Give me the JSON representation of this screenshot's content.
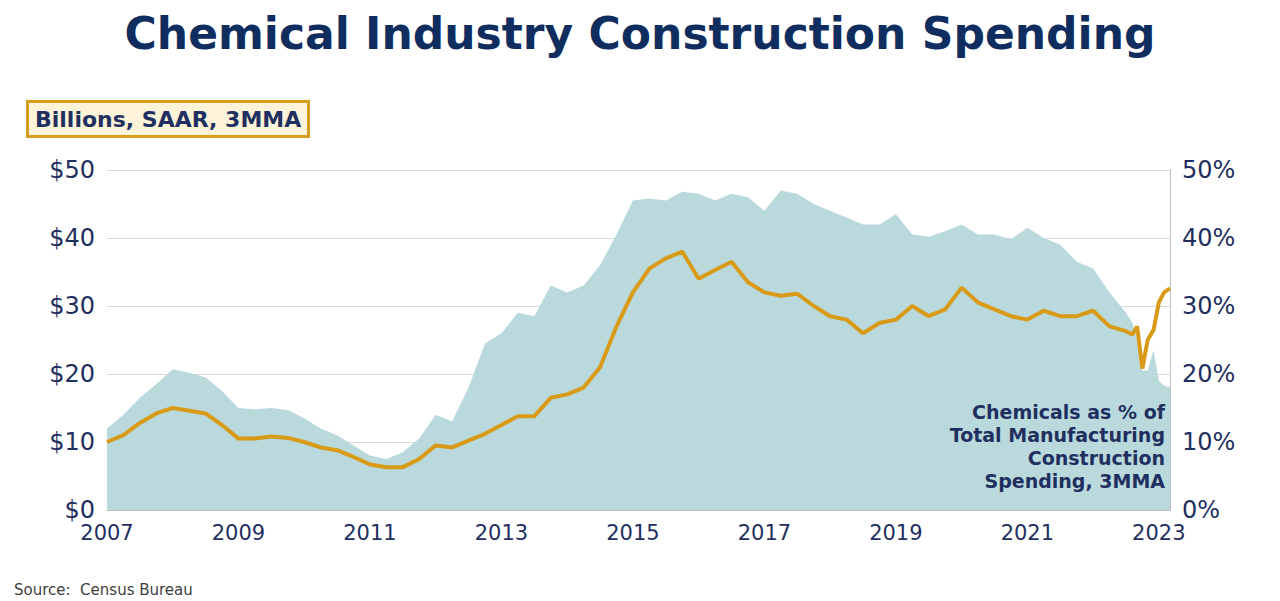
{
  "chart_data": {
    "type": "line",
    "title": "Chemical Industry Construction Spending",
    "subtitle": "Billions, SAAR, 3MMA",
    "source": "Source:  Census Bureau",
    "x": [
      2007.0,
      2007.25,
      2007.5,
      2007.75,
      2008.0,
      2008.25,
      2008.5,
      2008.75,
      2009.0,
      2009.25,
      2009.5,
      2009.75,
      2010.0,
      2010.25,
      2010.5,
      2010.75,
      2011.0,
      2011.25,
      2011.5,
      2011.75,
      2012.0,
      2012.25,
      2012.5,
      2012.75,
      2013.0,
      2013.25,
      2013.5,
      2013.75,
      2014.0,
      2014.25,
      2014.5,
      2014.75,
      2015.0,
      2015.25,
      2015.5,
      2015.75,
      2016.0,
      2016.25,
      2016.5,
      2016.75,
      2017.0,
      2017.25,
      2017.5,
      2017.75,
      2018.0,
      2018.25,
      2018.5,
      2018.75,
      2019.0,
      2019.25,
      2019.5,
      2019.75,
      2020.0,
      2020.25,
      2020.5,
      2020.75,
      2021.0,
      2021.25,
      2021.5,
      2021.75,
      2022.0,
      2022.25,
      2022.5,
      2022.6,
      2022.67,
      2022.75,
      2022.83,
      2022.92,
      2023.0,
      2023.08,
      2023.17
    ],
    "series": [
      {
        "name": "Chemicals as % of\nTotal Manufacturing\nConstruction\nSpending, 3MMA",
        "type": "area",
        "axis": "y2",
        "color": "#b9d9dd",
        "values": [
          12,
          14,
          16.5,
          18.5,
          20.7,
          20.2,
          19.5,
          17.5,
          15,
          14.8,
          15,
          14.7,
          13.5,
          12,
          11,
          9.5,
          8,
          7.5,
          8.5,
          10.5,
          14,
          13,
          18,
          24.5,
          26,
          29,
          28.5,
          33,
          32,
          33,
          36,
          40.5,
          45.5,
          45.8,
          45.5,
          46.8,
          46.5,
          45.5,
          46.5,
          46,
          44,
          47,
          46.5,
          45,
          44,
          43,
          42,
          42,
          43.5,
          40.5,
          40.2,
          41,
          42,
          40.5,
          40.5,
          39.8,
          41.5,
          40,
          39,
          36.5,
          35.5,
          32,
          29,
          27.5,
          25,
          20.5,
          20.5,
          23.5,
          19,
          18.3,
          18
        ]
      },
      {
        "type": "line",
        "color": "#d99a17",
        "values": [
          10,
          11,
          12.8,
          14.2,
          15,
          14.6,
          14.2,
          12.5,
          10.5,
          10.5,
          10.8,
          10.6,
          10,
          9.2,
          8.8,
          7.8,
          6.7,
          6.3,
          6.3,
          7.5,
          9.5,
          9.2,
          10.2,
          11.2,
          12.5,
          13.8,
          13.8,
          16.5,
          17,
          18,
          21,
          27,
          32,
          35.5,
          37,
          38,
          34,
          35.3,
          36.5,
          33.5,
          32,
          31.5,
          31.8,
          30,
          28.5,
          28,
          26,
          27.5,
          28,
          30,
          28.5,
          29.5,
          32.7,
          30.5,
          29.5,
          28.5,
          28,
          29.3,
          28.5,
          28.5,
          29.3,
          27,
          26.3,
          25.8,
          27,
          20.8,
          25,
          26.5,
          30.5,
          32,
          32.6
        ]
      }
    ],
    "xlim": [
      2007,
      2023.17
    ],
    "xticks": [
      2007,
      2009,
      2011,
      2013,
      2015,
      2017,
      2019,
      2021,
      2023
    ],
    "ylim": [
      0,
      50
    ],
    "yticks": [
      {
        "value": 0,
        "label": "$0"
      },
      {
        "value": 10,
        "label": "$10"
      },
      {
        "value": 20,
        "label": "$20"
      },
      {
        "value": 30,
        "label": "$30"
      },
      {
        "value": 40,
        "label": "$40"
      },
      {
        "value": 50,
        "label": "$50"
      }
    ],
    "y2lim": [
      0,
      50
    ],
    "y2ticks": [
      {
        "value": 0,
        "label": "0%"
      },
      {
        "value": 10,
        "label": "10%"
      },
      {
        "value": 20,
        "label": "20%"
      },
      {
        "value": 30,
        "label": "30%"
      },
      {
        "value": 40,
        "label": "40%"
      },
      {
        "value": 50,
        "label": "50%"
      }
    ],
    "grid": true
  }
}
